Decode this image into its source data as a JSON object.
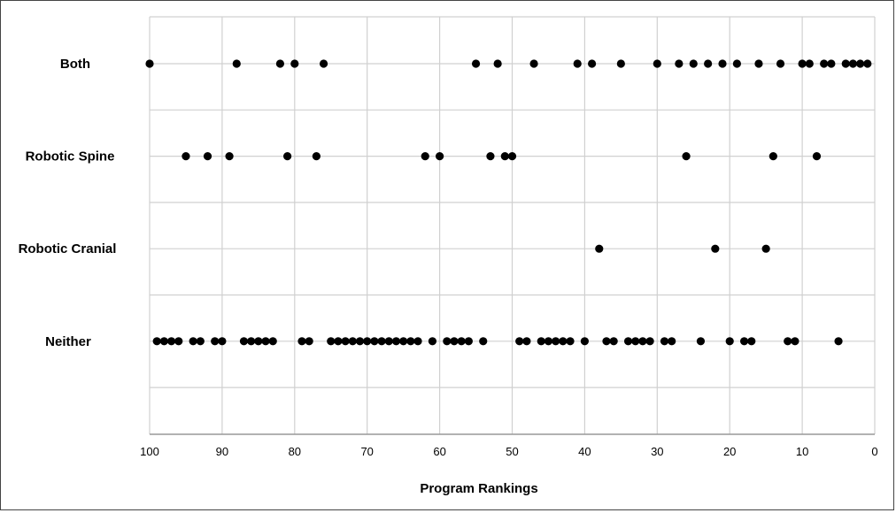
{
  "chart_data": {
    "type": "scatter",
    "title": "",
    "xlabel": "Program Rankings",
    "ylabel": "",
    "xlim": [
      100,
      0
    ],
    "x_reversed": true,
    "x_ticks": [
      100,
      90,
      80,
      70,
      60,
      50,
      40,
      30,
      20,
      10,
      0
    ],
    "x_tick_labels": [
      "100",
      "90",
      "80",
      "70",
      "60",
      "50",
      "40",
      "30",
      "20",
      "10",
      "0"
    ],
    "grid": "vertical and horizontal",
    "legend": "none",
    "colors": {
      "marker": "#000000",
      "grid": "#d0d0d0"
    },
    "categories": [
      "Both",
      "Robotic Spine",
      "Robotic Cranial",
      "Neither"
    ],
    "series": [
      {
        "name": "Both",
        "x": [
          100,
          88,
          82,
          80,
          76,
          55,
          52,
          47,
          41,
          39,
          35,
          30,
          27,
          25,
          23,
          21,
          19,
          16,
          13,
          10,
          9,
          7,
          6,
          4,
          3,
          2,
          1
        ]
      },
      {
        "name": "Robotic Spine",
        "x": [
          95,
          92,
          89,
          81,
          77,
          62,
          60,
          53,
          51,
          50,
          26,
          14,
          8
        ]
      },
      {
        "name": "Robotic Cranial",
        "x": [
          38,
          22,
          15
        ]
      },
      {
        "name": "Neither",
        "x": [
          99,
          98,
          97,
          96,
          94,
          93,
          91,
          90,
          87,
          86,
          85,
          84,
          83,
          79,
          78,
          75,
          74,
          73,
          72,
          71,
          70,
          69,
          68,
          67,
          66,
          65,
          64,
          63,
          61,
          59,
          58,
          57,
          56,
          54,
          49,
          48,
          46,
          45,
          44,
          43,
          42,
          40,
          37,
          36,
          34,
          33,
          32,
          31,
          29,
          28,
          24,
          20,
          18,
          17,
          12,
          11,
          5
        ]
      }
    ]
  }
}
